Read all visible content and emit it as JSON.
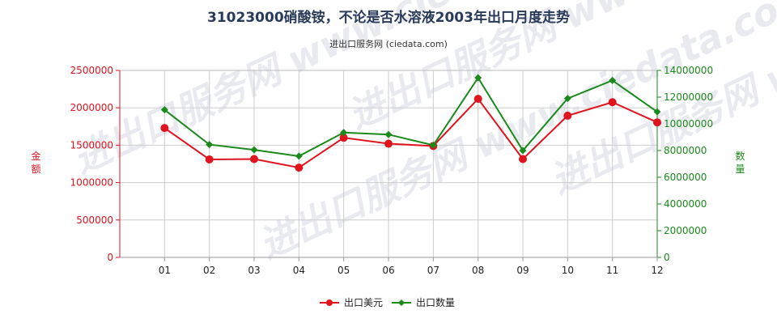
{
  "chart_data": {
    "type": "line",
    "title": "31023000硝酸铵，不论是否水溶液2003年出口月度走势",
    "subtitle": "进出口服务网 (ciedata.com)",
    "watermark": "进出口服务网 www.ciedata.com",
    "categories": [
      "01",
      "02",
      "03",
      "04",
      "05",
      "06",
      "07",
      "08",
      "09",
      "10",
      "11",
      "12"
    ],
    "y_left": {
      "label": "金额",
      "range": [
        0,
        2500000
      ],
      "ticks": [
        "0",
        "500000",
        "1000000",
        "1500000",
        "2000000",
        "2500000"
      ],
      "color": "#e0141e"
    },
    "y_right": {
      "label": "数量",
      "range": [
        0,
        14000000
      ],
      "ticks": [
        "0",
        "2000000",
        "4000000",
        "6000000",
        "8000000",
        "10000000",
        "12000000",
        "14000000"
      ],
      "color": "#1a8a1a"
    },
    "series": [
      {
        "name": "出口美元",
        "axis": "left",
        "color": "#e0141e",
        "values": [
          1730000,
          1310000,
          1315000,
          1200000,
          1600000,
          1520000,
          1490000,
          2120000,
          1315000,
          1895000,
          2075000,
          1805000
        ]
      },
      {
        "name": "出口数量",
        "axis": "right",
        "color": "#1a8a1a",
        "values": [
          11050000,
          8450000,
          8050000,
          7580000,
          9350000,
          9200000,
          8400000,
          13450000,
          8000000,
          11900000,
          13250000,
          10900000
        ]
      }
    ],
    "grid": true,
    "legend_position": "bottom-center"
  }
}
